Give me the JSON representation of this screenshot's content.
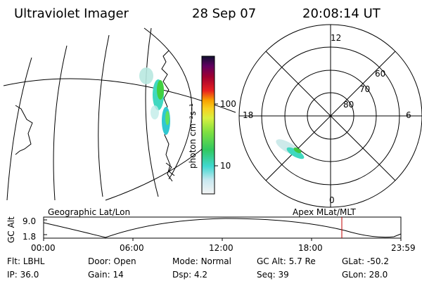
{
  "header": {
    "instrument": "Ultraviolet Imager",
    "date": "28 Sep 07",
    "time": "20:08:14 UT"
  },
  "colorbar": {
    "unit_label": "photon cm⁻²s⁻¹",
    "ticks": [
      "100",
      "10"
    ],
    "scale": "log"
  },
  "polar_plot": {
    "mlt_labels": [
      "12",
      "18",
      "6",
      "0"
    ],
    "lat_labels": [
      "60",
      "70",
      "80"
    ]
  },
  "map": {
    "coordinate_label": "Geographic Lat/Lon"
  },
  "timeline": {
    "axis_label": "GC Alt",
    "y_ticks": [
      "9.0",
      "1.8"
    ],
    "x_ticks": [
      "00:00",
      "06:00",
      "12:00",
      "18:00",
      "23:59"
    ],
    "title_left": "Geographic Lat/Lon",
    "title_right": "Apex MLat/MLT",
    "marker_color": "#c00000"
  },
  "status": {
    "row1": [
      {
        "label": "Flt:",
        "value": "LBHL"
      },
      {
        "label": "Door:",
        "value": "Open"
      },
      {
        "label": "Mode:",
        "value": "Normal"
      },
      {
        "label": "GC Alt:",
        "value": "5.7 Re"
      },
      {
        "label": "GLat:",
        "value": "-50.2"
      }
    ],
    "row2": [
      {
        "label": "IP:",
        "value": "36.0"
      },
      {
        "label": "Gain:",
        "value": "14"
      },
      {
        "label": "Dsp:",
        "value": "4.2"
      },
      {
        "label": "Seq:",
        "value": "39"
      },
      {
        "label": "GLon:",
        "value": "28.0"
      }
    ]
  }
}
